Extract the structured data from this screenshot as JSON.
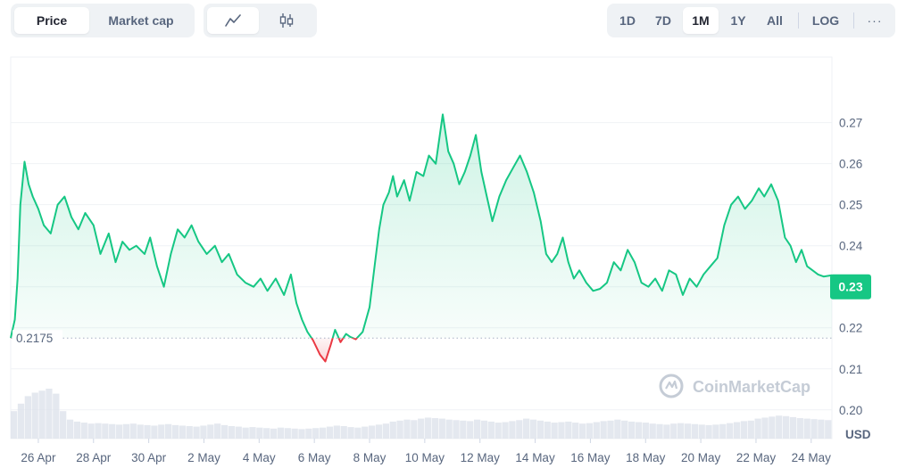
{
  "controls": {
    "type_tabs": [
      {
        "label": "Price",
        "active": true
      },
      {
        "label": "Market cap",
        "active": false
      }
    ],
    "chart_tabs": [
      {
        "icon": "line-chart-icon",
        "active": true
      },
      {
        "icon": "candlestick-icon",
        "active": false
      }
    ],
    "range_tabs": [
      {
        "label": "1D",
        "active": false
      },
      {
        "label": "7D",
        "active": false
      },
      {
        "label": "1M",
        "active": true
      },
      {
        "label": "1Y",
        "active": false
      },
      {
        "label": "All",
        "active": false
      }
    ],
    "log_label": "LOG",
    "more_label": "···"
  },
  "watermark": "CoinMarketCap",
  "colors": {
    "up": "#16c784",
    "down": "#ea3943",
    "badge": "#16c784",
    "grid": "#eff2f5",
    "text": "#58667e"
  },
  "chart_data": {
    "type": "area",
    "currency_label": "USD",
    "reference_price": 0.2175,
    "reference_label": "0.2175",
    "current_price_label": "0.23",
    "y_ticks": [
      "0.20",
      "0.21",
      "0.22",
      "0.23",
      "0.24",
      "0.25",
      "0.26",
      "0.27"
    ],
    "ylim": [
      0.193,
      0.286
    ],
    "x_tick_labels": [
      "26 Apr",
      "28 Apr",
      "30 Apr",
      "2 May",
      "4 May",
      "6 May",
      "8 May",
      "10 May",
      "12 May",
      "14 May",
      "16 May",
      "18 May",
      "20 May",
      "22 May",
      "24 May"
    ],
    "x_tick_days": [
      1,
      3,
      5,
      7,
      9,
      11,
      13,
      15,
      17,
      19,
      21,
      23,
      25,
      27,
      29
    ],
    "xlim": [
      0,
      29.75
    ],
    "series": [
      {
        "x": [
          0,
          0.15,
          0.25,
          0.35,
          0.5,
          0.65,
          0.8,
          1.0,
          1.2,
          1.45,
          1.7,
          1.95,
          2.2,
          2.45,
          2.7,
          3.0,
          3.25,
          3.55,
          3.8,
          4.05,
          4.3,
          4.55,
          4.85,
          5.05,
          5.3,
          5.55,
          5.8,
          6.05,
          6.3,
          6.55,
          6.8,
          7.1,
          7.4,
          7.65,
          7.9,
          8.2,
          8.5,
          8.8,
          9.05,
          9.3,
          9.6,
          9.9,
          10.15,
          10.35,
          10.55,
          10.75,
          10.95,
          11.2,
          11.4,
          11.6,
          11.75,
          11.85,
          11.95,
          12.05,
          12.15,
          12.3,
          12.5,
          12.75,
          13.0,
          13.2,
          13.35,
          13.5,
          13.7,
          13.85,
          14.0,
          14.25,
          14.45,
          14.7,
          14.95,
          15.15,
          15.4,
          15.65,
          15.85,
          16.05,
          16.25,
          16.45,
          16.65,
          16.85,
          17.05,
          17.25,
          17.45,
          17.7,
          17.95,
          18.2,
          18.45,
          18.7,
          18.95,
          19.2,
          19.4,
          19.6,
          19.8,
          20.0,
          20.2,
          20.4,
          20.6,
          20.85,
          21.1,
          21.35,
          21.6,
          21.85,
          22.1,
          22.35,
          22.6,
          22.85,
          23.1,
          23.35,
          23.6,
          23.85,
          24.1,
          24.35,
          24.6,
          24.85,
          25.1,
          25.35,
          25.6,
          25.85,
          26.1,
          26.35,
          26.6,
          26.85,
          27.1,
          27.3,
          27.55,
          27.8,
          28.05,
          28.25,
          28.45,
          28.65,
          28.85,
          29.05,
          29.25,
          29.45,
          29.75
        ],
        "y": [
          0.2175,
          0.222,
          0.232,
          0.25,
          0.2605,
          0.255,
          0.252,
          0.249,
          0.245,
          0.243,
          0.25,
          0.252,
          0.247,
          0.244,
          0.248,
          0.245,
          0.238,
          0.243,
          0.236,
          0.241,
          0.239,
          0.24,
          0.238,
          0.242,
          0.235,
          0.23,
          0.238,
          0.244,
          0.242,
          0.245,
          0.241,
          0.238,
          0.24,
          0.236,
          0.238,
          0.233,
          0.231,
          0.23,
          0.232,
          0.229,
          0.232,
          0.228,
          0.233,
          0.226,
          0.222,
          0.219,
          0.217,
          0.2135,
          0.2118,
          0.216,
          0.2195,
          0.218,
          0.2165,
          0.2175,
          0.2185,
          0.2178,
          0.2172,
          0.219,
          0.225,
          0.236,
          0.244,
          0.25,
          0.253,
          0.257,
          0.252,
          0.256,
          0.251,
          0.258,
          0.257,
          0.262,
          0.26,
          0.272,
          0.263,
          0.26,
          0.255,
          0.258,
          0.262,
          0.267,
          0.258,
          0.252,
          0.246,
          0.252,
          0.256,
          0.259,
          0.262,
          0.258,
          0.253,
          0.246,
          0.238,
          0.236,
          0.238,
          0.242,
          0.236,
          0.232,
          0.234,
          0.231,
          0.229,
          0.2295,
          0.231,
          0.236,
          0.234,
          0.239,
          0.236,
          0.231,
          0.23,
          0.232,
          0.229,
          0.234,
          0.233,
          0.228,
          0.232,
          0.23,
          0.233,
          0.235,
          0.237,
          0.245,
          0.25,
          0.252,
          0.249,
          0.251,
          0.254,
          0.252,
          0.255,
          0.251,
          0.242,
          0.24,
          0.236,
          0.239,
          0.235,
          0.234,
          0.233,
          0.2325,
          0.2328
        ]
      }
    ],
    "volume_series": [
      0.55,
      0.7,
      0.85,
      0.92,
      0.96,
      1.0,
      0.9,
      0.55,
      0.38,
      0.34,
      0.32,
      0.3,
      0.31,
      0.3,
      0.29,
      0.28,
      0.29,
      0.3,
      0.28,
      0.27,
      0.26,
      0.28,
      0.29,
      0.27,
      0.26,
      0.25,
      0.24,
      0.26,
      0.28,
      0.3,
      0.27,
      0.25,
      0.24,
      0.22,
      0.23,
      0.22,
      0.21,
      0.2,
      0.22,
      0.21,
      0.2,
      0.19,
      0.2,
      0.21,
      0.22,
      0.24,
      0.26,
      0.25,
      0.23,
      0.22,
      0.24,
      0.26,
      0.28,
      0.3,
      0.34,
      0.36,
      0.38,
      0.37,
      0.4,
      0.42,
      0.41,
      0.4,
      0.38,
      0.37,
      0.36,
      0.35,
      0.38,
      0.36,
      0.34,
      0.32,
      0.33,
      0.35,
      0.37,
      0.4,
      0.38,
      0.36,
      0.34,
      0.32,
      0.33,
      0.34,
      0.32,
      0.3,
      0.31,
      0.33,
      0.35,
      0.36,
      0.38,
      0.36,
      0.34,
      0.33,
      0.32,
      0.3,
      0.29,
      0.28,
      0.3,
      0.31,
      0.3,
      0.29,
      0.28,
      0.27,
      0.28,
      0.29,
      0.31,
      0.33,
      0.35,
      0.36,
      0.4,
      0.42,
      0.44,
      0.46,
      0.45,
      0.43,
      0.41,
      0.4,
      0.39,
      0.38,
      0.37
    ]
  }
}
